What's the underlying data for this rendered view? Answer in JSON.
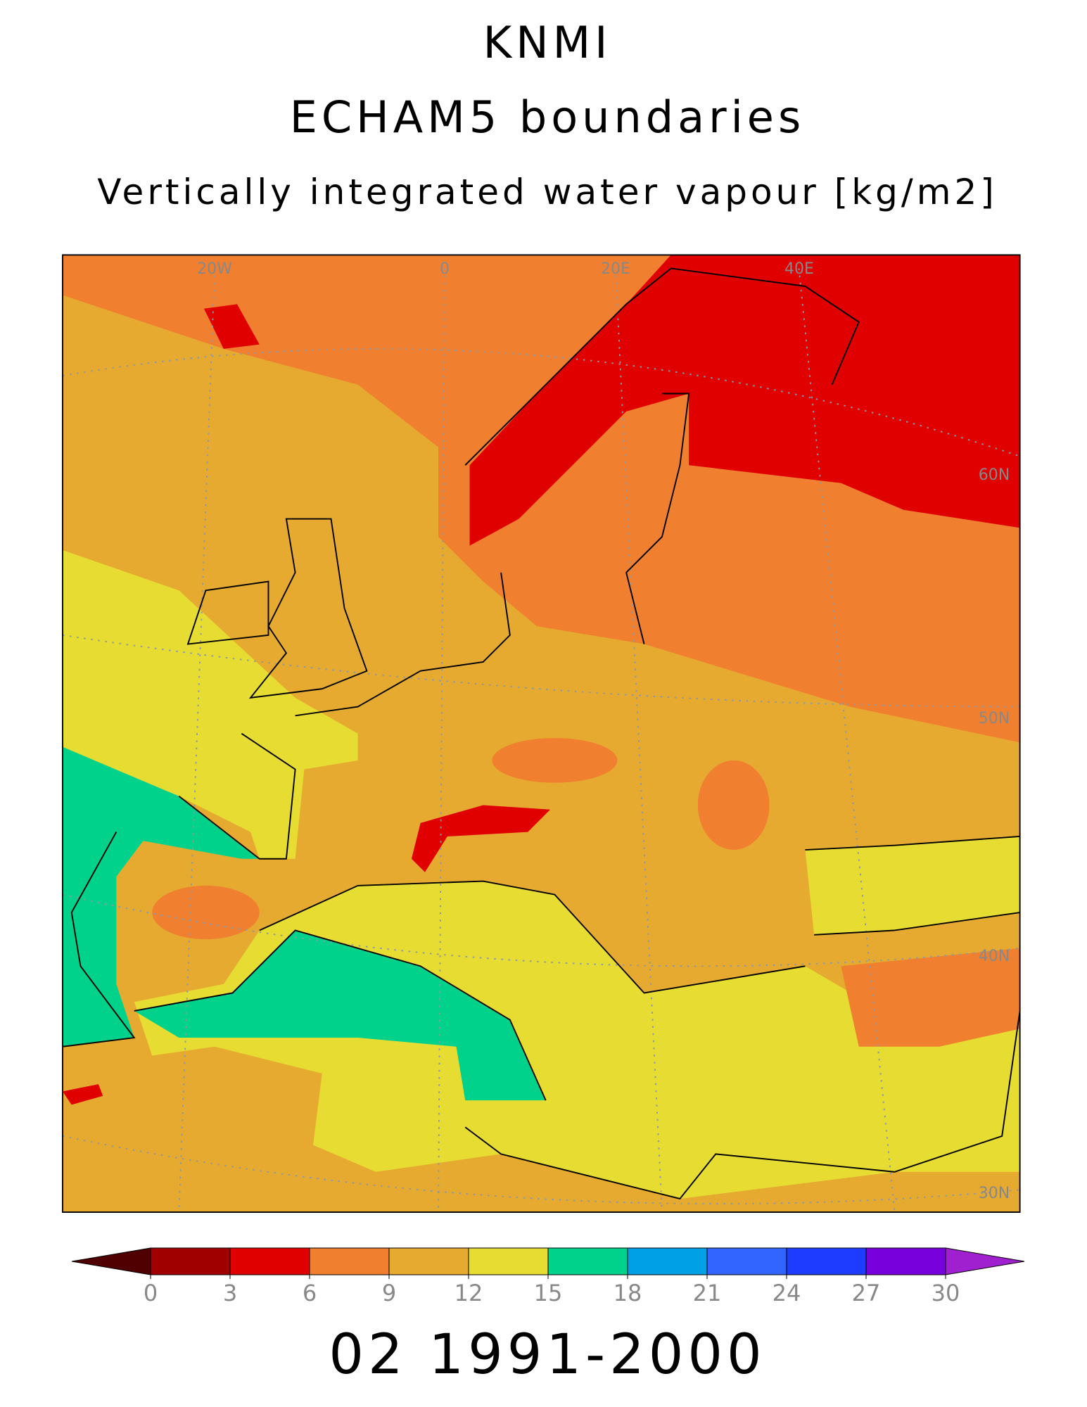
{
  "title": "KNMI",
  "subtitle": "ECHAM5 boundaries",
  "variable": "Vertically integrated water vapour [kg/m2]",
  "map_labels": {
    "lon": [
      "20W",
      "0",
      "20E",
      "40E"
    ],
    "lat": [
      "60N",
      "50N",
      "40N",
      "30N"
    ]
  },
  "colorbar": {
    "ticks": [
      0,
      3,
      6,
      9,
      12,
      15,
      18,
      21,
      24,
      27,
      30
    ],
    "colors": [
      "#500000",
      "#a00000",
      "#e00000",
      "#f08030",
      "#e6aa30",
      "#e6dc32",
      "#00d28c",
      "#00a0e6",
      "#3264ff",
      "#1e3cff",
      "#7800dc",
      "#a020d0"
    ]
  },
  "period": "02 1991-2000"
}
